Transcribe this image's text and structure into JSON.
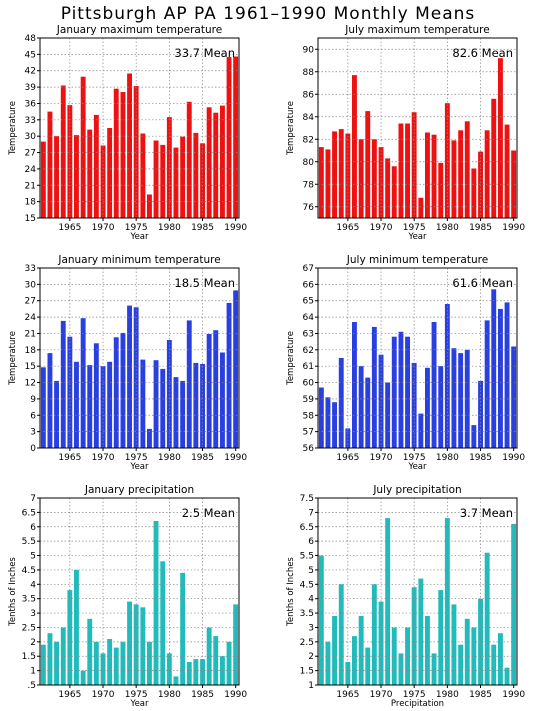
{
  "title": "Pittsburgh AP PA   1961–1990 Monthly Means",
  "xticks": [
    "1965",
    "1970",
    "1975",
    "1980",
    "1985",
    "1990"
  ],
  "chart_data": [
    {
      "type": "bar",
      "title": "January maximum temperature",
      "mean_label": "33.7  Mean",
      "xlabel": "Year",
      "ylabel": "Temperature",
      "color": "#ee1111",
      "ylim": [
        15,
        48
      ],
      "yticks": [
        15,
        18,
        21,
        24,
        27,
        30,
        33,
        36,
        39,
        42,
        45,
        48
      ],
      "categories": [
        1961,
        1962,
        1963,
        1964,
        1965,
        1966,
        1967,
        1968,
        1969,
        1970,
        1971,
        1972,
        1973,
        1974,
        1975,
        1976,
        1977,
        1978,
        1979,
        1980,
        1981,
        1982,
        1983,
        1984,
        1985,
        1986,
        1987,
        1988,
        1989,
        1990
      ],
      "values": [
        29.0,
        34.5,
        30.0,
        39.3,
        35.7,
        30.2,
        40.9,
        31.2,
        33.9,
        28.3,
        31.5,
        38.7,
        38.1,
        41.5,
        39.2,
        30.5,
        19.3,
        29.2,
        28.4,
        33.5,
        27.9,
        29.9,
        36.3,
        30.6,
        28.7,
        35.3,
        34.3,
        35.6,
        44.5,
        44.6
      ]
    },
    {
      "type": "bar",
      "title": "July maximum temperature",
      "mean_label": "82.6  Mean",
      "xlabel": "Year",
      "ylabel": "Temperature",
      "color": "#ee1111",
      "ylim": [
        75,
        91
      ],
      "yticks": [
        76,
        78,
        80,
        82,
        84,
        86,
        88,
        90
      ],
      "categories": [
        1961,
        1962,
        1963,
        1964,
        1965,
        1966,
        1967,
        1968,
        1969,
        1970,
        1971,
        1972,
        1973,
        1974,
        1975,
        1976,
        1977,
        1978,
        1979,
        1980,
        1981,
        1982,
        1983,
        1984,
        1985,
        1986,
        1987,
        1988,
        1989,
        1990
      ],
      "values": [
        81.3,
        81.1,
        82.7,
        82.9,
        82.5,
        87.7,
        82.0,
        84.5,
        82.0,
        81.3,
        80.3,
        79.6,
        83.4,
        83.4,
        84.4,
        76.8,
        82.6,
        82.4,
        79.9,
        85.2,
        81.9,
        82.8,
        83.6,
        79.4,
        80.9,
        82.8,
        85.6,
        89.2,
        83.3,
        81.0
      ]
    },
    {
      "type": "bar",
      "title": "January minimum temperature",
      "mean_label": "18.5  Mean",
      "xlabel": "Year",
      "ylabel": "Temperature",
      "color": "#2a3fe0",
      "ylim": [
        0,
        33
      ],
      "yticks": [
        0,
        3,
        6,
        9,
        12,
        15,
        18,
        21,
        24,
        27,
        30,
        33
      ],
      "categories": [
        1961,
        1962,
        1963,
        1964,
        1965,
        1966,
        1967,
        1968,
        1969,
        1970,
        1971,
        1972,
        1973,
        1974,
        1975,
        1976,
        1977,
        1978,
        1979,
        1980,
        1981,
        1982,
        1983,
        1984,
        1985,
        1986,
        1987,
        1988,
        1989,
        1990
      ],
      "values": [
        14.8,
        17.4,
        12.3,
        23.3,
        20.4,
        15.8,
        23.8,
        15.2,
        19.2,
        15.0,
        15.8,
        20.3,
        21.1,
        26.1,
        25.8,
        16.2,
        3.5,
        16.1,
        14.5,
        19.8,
        13.0,
        12.3,
        23.4,
        15.6,
        15.4,
        20.9,
        21.6,
        17.5,
        26.6,
        28.9
      ]
    },
    {
      "type": "bar",
      "title": "July minimum temperature",
      "mean_label": "61.6  Mean",
      "xlabel": "Year",
      "ylabel": "Temperature",
      "color": "#2a3fe0",
      "ylim": [
        56,
        67
      ],
      "yticks": [
        56,
        57,
        58,
        59,
        60,
        61,
        62,
        63,
        64,
        65,
        66,
        67
      ],
      "categories": [
        1961,
        1962,
        1963,
        1964,
        1965,
        1966,
        1967,
        1968,
        1969,
        1970,
        1971,
        1972,
        1973,
        1974,
        1975,
        1976,
        1977,
        1978,
        1979,
        1980,
        1981,
        1982,
        1983,
        1984,
        1985,
        1986,
        1987,
        1988,
        1989,
        1990
      ],
      "values": [
        59.7,
        59.1,
        58.8,
        61.5,
        57.2,
        63.7,
        61.0,
        60.3,
        63.4,
        61.7,
        60.0,
        62.8,
        63.1,
        62.8,
        61.2,
        58.1,
        60.9,
        63.7,
        61.0,
        64.8,
        62.1,
        61.8,
        62.0,
        57.4,
        60.1,
        63.8,
        65.7,
        64.5,
        64.9,
        62.2
      ]
    },
    {
      "type": "bar",
      "title": "January precipitation",
      "mean_label": "2.5  Mean",
      "xlabel": "Year",
      "ylabel": "Tenths of Inches",
      "color": "#22bbbb",
      "ylim": [
        0.5,
        7
      ],
      "yticks": [
        0.5,
        1,
        1.5,
        2,
        2.5,
        3,
        3.5,
        4,
        4.5,
        5,
        5.5,
        6,
        6.5,
        7
      ],
      "ytick_labels": [
        ".5",
        "1",
        "1.5",
        "2",
        "2.5",
        "3",
        "3.5",
        "4",
        "4.5",
        "5",
        "5.5",
        "6",
        "6.5",
        "7"
      ],
      "categories": [
        1961,
        1962,
        1963,
        1964,
        1965,
        1966,
        1967,
        1968,
        1969,
        1970,
        1971,
        1972,
        1973,
        1974,
        1975,
        1976,
        1977,
        1978,
        1979,
        1980,
        1981,
        1982,
        1983,
        1984,
        1985,
        1986,
        1987,
        1988,
        1989,
        1990
      ],
      "values": [
        1.9,
        2.3,
        2.0,
        2.5,
        3.8,
        4.5,
        1.0,
        2.8,
        2.0,
        1.6,
        2.1,
        1.8,
        2.0,
        3.4,
        3.3,
        3.2,
        2.0,
        6.2,
        4.8,
        1.6,
        0.8,
        4.4,
        1.3,
        1.4,
        1.4,
        2.5,
        2.2,
        1.5,
        2.0,
        3.3
      ]
    },
    {
      "type": "bar",
      "title": "July precipitation",
      "mean_label": "3.7  Mean",
      "xlabel": "Precipitation",
      "ylabel": "Tenths of Inches",
      "color": "#22bbbb",
      "ylim": [
        1,
        7.5
      ],
      "yticks": [
        1,
        1.5,
        2,
        2.5,
        3,
        3.5,
        4,
        4.5,
        5,
        5.5,
        6,
        6.5,
        7,
        7.5
      ],
      "ytick_labels": [
        "1",
        "1.5",
        "2",
        "2.5",
        "3",
        "3.5",
        "4",
        "4.5",
        "5",
        "5.5",
        "6",
        "6.5",
        "7",
        "7.5"
      ],
      "categories": [
        1961,
        1962,
        1963,
        1964,
        1965,
        1966,
        1967,
        1968,
        1969,
        1970,
        1971,
        1972,
        1973,
        1974,
        1975,
        1976,
        1977,
        1978,
        1979,
        1980,
        1981,
        1982,
        1983,
        1984,
        1985,
        1986,
        1987,
        1988,
        1989,
        1990
      ],
      "values": [
        5.5,
        2.5,
        3.4,
        4.5,
        1.8,
        2.7,
        3.4,
        2.3,
        4.5,
        3.9,
        6.8,
        3.0,
        2.1,
        3.0,
        4.4,
        4.7,
        3.4,
        2.1,
        4.3,
        6.8,
        3.8,
        2.4,
        3.3,
        3.0,
        4.0,
        5.6,
        2.4,
        2.8,
        1.6,
        6.6
      ]
    }
  ]
}
